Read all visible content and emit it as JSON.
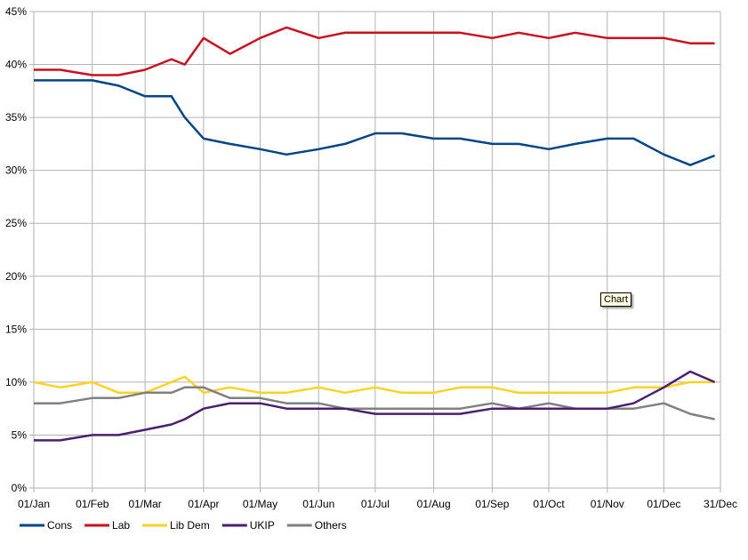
{
  "chart_data": {
    "type": "line",
    "title": "",
    "xlabel": "",
    "ylabel": "",
    "ylim": [
      0,
      45
    ],
    "yticks": [
      "0%",
      "5%",
      "10%",
      "15%",
      "20%",
      "25%",
      "30%",
      "35%",
      "40%",
      "45%"
    ],
    "xticks": [
      "01/Jan",
      "01/Feb",
      "01/Mar",
      "01/Apr",
      "01/May",
      "01/Jun",
      "01/Jul",
      "01/Aug",
      "01/Sep",
      "01/Oct",
      "01/Nov",
      "01/Dec",
      "31/Dec"
    ],
    "grid": true,
    "legend_position": "bottom-left",
    "x": [
      "01/Jan",
      "15/Jan",
      "01/Feb",
      "15/Feb",
      "01/Mar",
      "15/Mar",
      "22/Mar",
      "01/Apr",
      "15/Apr",
      "01/May",
      "15/May",
      "01/Jun",
      "15/Jun",
      "01/Jul",
      "15/Jul",
      "01/Aug",
      "15/Aug",
      "01/Sep",
      "15/Sep",
      "01/Oct",
      "15/Oct",
      "01/Nov",
      "15/Nov",
      "01/Dec",
      "15/Dec",
      "28/Dec"
    ],
    "series": [
      {
        "name": "Cons",
        "color": "#004586",
        "values": [
          38.5,
          38.5,
          38.5,
          38,
          37,
          37,
          35,
          33,
          32.5,
          32,
          31.5,
          32,
          32.5,
          33.5,
          33.5,
          33,
          33,
          32.5,
          32.5,
          32,
          32.5,
          33,
          33,
          31.5,
          30.5,
          31.4
        ]
      },
      {
        "name": "Lab",
        "color": "#c9101e",
        "values": [
          39.5,
          39.5,
          39,
          39,
          39.5,
          40.5,
          40,
          42.5,
          41,
          42.5,
          43.5,
          42.5,
          43,
          43,
          43,
          43,
          43,
          42.5,
          43,
          42.5,
          43,
          42.5,
          42.5,
          42.5,
          42,
          42
        ]
      },
      {
        "name": "Lib Dem",
        "color": "#ffd320",
        "values": [
          10,
          9.5,
          10,
          9,
          9,
          10,
          10.5,
          9,
          9.5,
          9,
          9,
          9.5,
          9,
          9.5,
          9,
          9,
          9.5,
          9.5,
          9,
          9,
          9,
          9,
          9.5,
          9.5,
          10,
          10
        ]
      },
      {
        "name": "UKIP",
        "color": "#4b1f6f",
        "values": [
          4.5,
          4.5,
          5,
          5,
          5.5,
          6,
          6.5,
          7.5,
          8,
          8,
          7.5,
          7.5,
          7.5,
          7,
          7,
          7,
          7,
          7.5,
          7.5,
          7.5,
          7.5,
          7.5,
          8,
          9.5,
          11,
          10
        ]
      },
      {
        "name": "Others",
        "color": "#808080",
        "values": [
          8,
          8,
          8.5,
          8.5,
          9,
          9,
          9.5,
          9.5,
          8.5,
          8.5,
          8,
          8,
          7.5,
          7.5,
          7.5,
          7.5,
          7.5,
          8,
          7.5,
          8,
          7.5,
          7.5,
          7.5,
          8,
          7,
          6.5
        ]
      }
    ],
    "annotations": [
      "Chart"
    ]
  }
}
